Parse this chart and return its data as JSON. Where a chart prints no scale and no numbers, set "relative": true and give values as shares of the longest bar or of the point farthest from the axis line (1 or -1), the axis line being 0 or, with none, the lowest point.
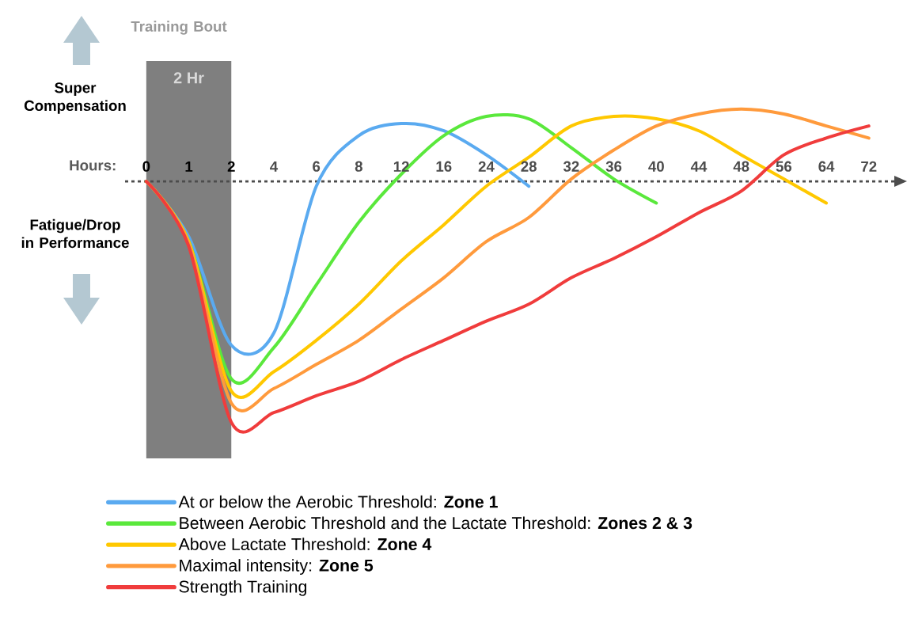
{
  "chart_data": {
    "type": "line",
    "relative": true,
    "xlabel": "Hours:",
    "categories": [
      "0",
      "1",
      "2",
      "4",
      "6",
      "8",
      "12",
      "16",
      "24",
      "28",
      "32",
      "36",
      "40",
      "44",
      "48",
      "56",
      "64",
      "72"
    ],
    "series": [
      {
        "name": "At or below the Aerobic Threshold: **Zone 1**",
        "color": "#5aaaf0",
        "values": [
          0,
          -0.23,
          -0.68,
          -0.63,
          -0.02,
          0.19,
          0.24,
          0.21,
          0.11,
          -0.02,
          null,
          null,
          null,
          null,
          null,
          null,
          null,
          null
        ]
      },
      {
        "name": "Between Aerobic Threshold and the Lactate Threshold: **Zones 2 & 3**",
        "color": "#5ae83c",
        "values": [
          0,
          -0.25,
          -0.82,
          -0.69,
          -0.43,
          -0.17,
          0.03,
          0.19,
          0.27,
          0.26,
          0.14,
          0.01,
          -0.09,
          null,
          null,
          null,
          null,
          null
        ]
      },
      {
        "name": "Above Lactate Threshold: **Zone 4**",
        "color": "#ffc800",
        "values": [
          0,
          -0.25,
          -0.87,
          -0.79,
          -0.66,
          -0.51,
          -0.33,
          -0.18,
          -0.02,
          0.1,
          0.23,
          0.27,
          0.26,
          0.21,
          0.11,
          0.01,
          -0.09,
          null
        ]
      },
      {
        "name": "Maximal  intensity: **Zone 5**",
        "color": "#ff9a3c",
        "values": [
          0,
          -0.26,
          -0.92,
          -0.86,
          -0.76,
          -0.66,
          -0.53,
          -0.4,
          -0.25,
          -0.15,
          0.01,
          0.13,
          0.23,
          0.28,
          0.3,
          0.28,
          0.23,
          0.18
        ]
      },
      {
        "name": "Strength Training",
        "color": "#f03c3c",
        "values": [
          0,
          -0.27,
          -1,
          -0.96,
          -0.89,
          -0.83,
          -0.74,
          -0.66,
          -0.58,
          -0.51,
          -0.4,
          -0.32,
          -0.23,
          -0.13,
          -0.04,
          0.11,
          0.18,
          0.23
        ]
      }
    ],
    "ref_lines": [
      {
        "axis": "y",
        "value": 0,
        "line_style": "dashed",
        "color": "#4c4c4c"
      }
    ],
    "bands": [
      {
        "axis": "x",
        "from": "0",
        "to": "2",
        "label": "2 Hr",
        "color": "#7f7f7f"
      }
    ],
    "annotations": [
      "Training Bout",
      "Super Compensation",
      "Fatigue/Drop in Performance"
    ],
    "legend": "bottom"
  }
}
